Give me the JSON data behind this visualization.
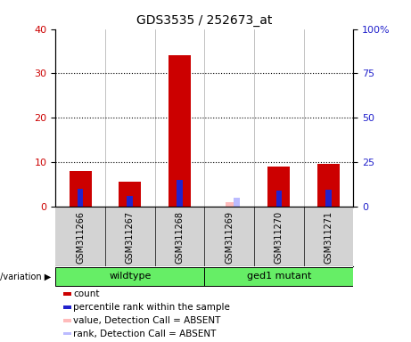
{
  "title": "GDS3535 / 252673_at",
  "samples": [
    "GSM311266",
    "GSM311267",
    "GSM311268",
    "GSM311269",
    "GSM311270",
    "GSM311271"
  ],
  "red_values": [
    8.0,
    5.5,
    34.0,
    0.0,
    9.0,
    9.5
  ],
  "blue_values": [
    10.0,
    6.0,
    15.0,
    0.0,
    9.0,
    9.5
  ],
  "absent_idx": 3,
  "absent_red_val": 1.0,
  "absent_blue_val": 5.0,
  "ylim_left": [
    0,
    40
  ],
  "ylim_right": [
    0,
    100
  ],
  "yticks_left": [
    0,
    10,
    20,
    30,
    40
  ],
  "yticks_right": [
    0,
    25,
    50,
    75,
    100
  ],
  "red_color": "#cc0000",
  "blue_color": "#2222cc",
  "absent_red_color": "#ffbbbb",
  "absent_blue_color": "#bbbbff",
  "bar_bg_color": "#d3d3d3",
  "green_color": "#66ee66",
  "legend_items": [
    {
      "label": "count",
      "color": "#cc0000"
    },
    {
      "label": "percentile rank within the sample",
      "color": "#2222cc"
    },
    {
      "label": "value, Detection Call = ABSENT",
      "color": "#ffbbbb"
    },
    {
      "label": "rank, Detection Call = ABSENT",
      "color": "#bbbbff"
    }
  ],
  "wildtype_label": "wildtype",
  "mutant_label": "ged1 mutant",
  "genotype_label": "genotype/variation"
}
